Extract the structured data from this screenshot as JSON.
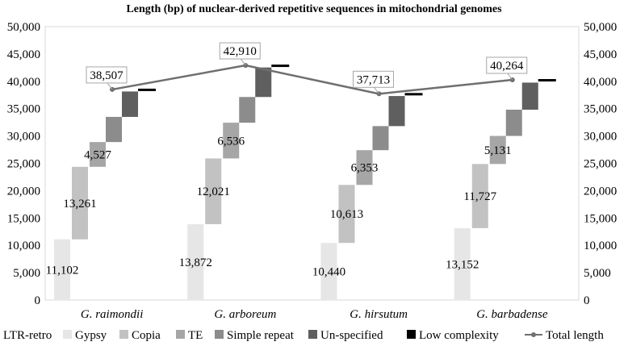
{
  "chart_data": {
    "type": "bar",
    "title": "Length (bp) of nuclear-derived repetitive sequences in mitochondrial genomes",
    "categories": [
      "G. raimondii",
      "G. arboreum",
      "G. hirsutum",
      "G. barbadense"
    ],
    "ylim": [
      0,
      50000
    ],
    "yticks": [
      "0",
      "5,000",
      "10,000",
      "15,000",
      "20,000",
      "25,000",
      "30,000",
      "35,000",
      "40,000",
      "45,000",
      "50,000"
    ],
    "legend_prefix": "LTR-retro",
    "legend_position": "bottom",
    "grid": false,
    "series": [
      {
        "name": "Gypsy",
        "color": "#e6e6e6",
        "values": [
          11102,
          13872,
          10440,
          13152
        ],
        "labels": [
          "11,102",
          "13,872",
          "10,440",
          "13,152"
        ]
      },
      {
        "name": "Copia",
        "color": "#c2c2c2",
        "values": [
          13261,
          12021,
          10613,
          11727
        ],
        "labels": [
          "13,261",
          "12,021",
          "10,613",
          "11,727"
        ]
      },
      {
        "name": "TE",
        "color": "#a6a6a6",
        "values": [
          4527,
          6536,
          6353,
          5131
        ],
        "labels": [
          "4,527",
          "6,536",
          "6,353",
          "5,131"
        ]
      },
      {
        "name": "Simple repeat",
        "color": "#8c8c8c",
        "values": [
          4600,
          4700,
          4400,
          4800
        ],
        "labels": []
      },
      {
        "name": "Un-specified",
        "color": "#5f5f5f",
        "values": [
          4650,
          5400,
          5500,
          4950
        ],
        "labels": []
      },
      {
        "name": "Low complexity",
        "color": "#000000",
        "values": [
          367,
          381,
          407,
          504
        ],
        "labels": []
      }
    ],
    "total": {
      "name": "Total length",
      "color": "#6f6f6f",
      "values": [
        38507,
        42910,
        37713,
        40264
      ],
      "labels": [
        "38,507",
        "42,910",
        "37,713",
        "40,264"
      ]
    }
  }
}
